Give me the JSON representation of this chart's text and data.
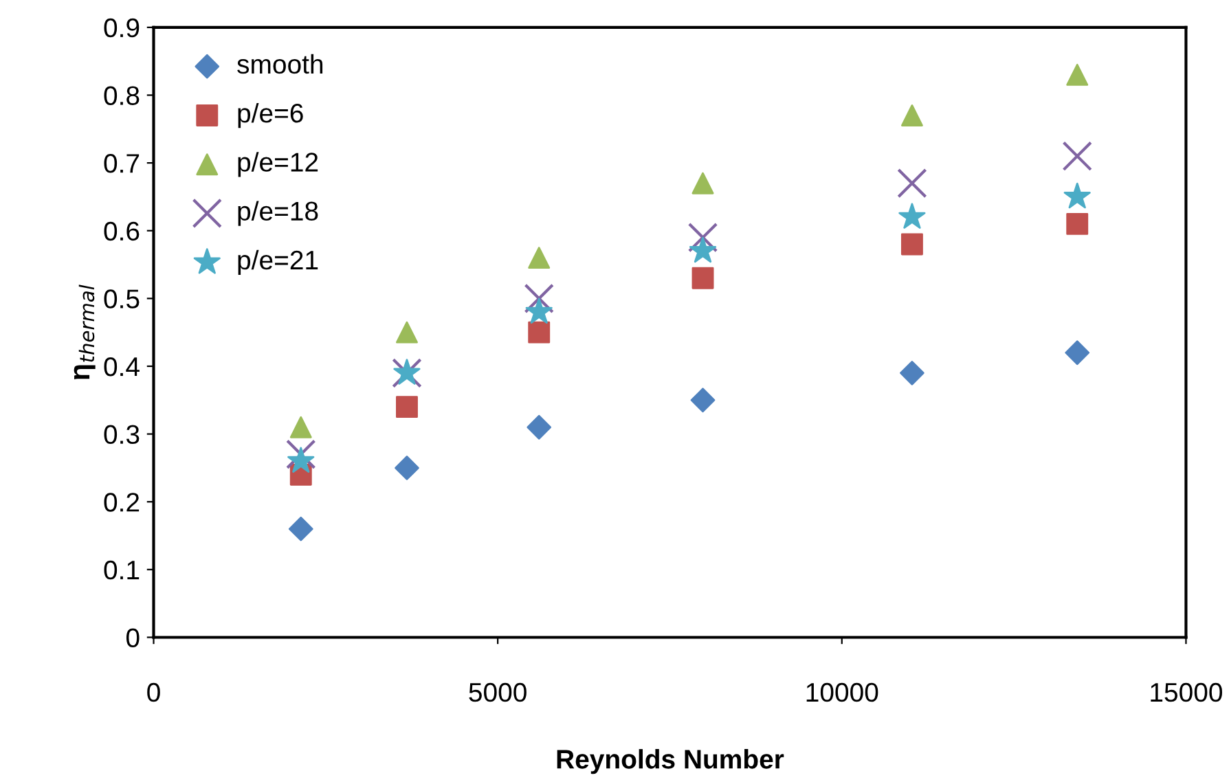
{
  "chart_data": {
    "type": "scatter",
    "xlabel": "Reynolds Number",
    "ylabel": "η$_{thermal}$",
    "x": [
      2140,
      3680,
      5600,
      7980,
      11020,
      13420
    ],
    "series": [
      {
        "name": "smooth",
        "color": "#4f81bd",
        "marker": "diamond",
        "values": [
          0.16,
          0.25,
          0.31,
          0.35,
          0.39,
          0.42
        ]
      },
      {
        "name": "p/e=6",
        "color": "#c0504d",
        "marker": "square",
        "values": [
          0.24,
          0.34,
          0.45,
          0.53,
          0.58,
          0.61
        ]
      },
      {
        "name": "p/e=12",
        "color": "#9bbb59",
        "marker": "triangle",
        "values": [
          0.31,
          0.45,
          0.56,
          0.67,
          0.77,
          0.83
        ]
      },
      {
        "name": "p/e=18",
        "color": "#8064a2",
        "marker": "cross",
        "values": [
          0.27,
          0.39,
          0.5,
          0.59,
          0.67,
          0.71
        ]
      },
      {
        "name": "p/e=21",
        "color": "#4bacc6",
        "marker": "star",
        "values": [
          0.26,
          0.39,
          0.48,
          0.57,
          0.62,
          0.65
        ]
      }
    ],
    "xlim": [
      0,
      15000
    ],
    "xticks": [
      0,
      5000,
      10000,
      15000
    ],
    "ylim": [
      0,
      0.9
    ],
    "yticks": [
      0,
      0.1,
      0.2,
      0.3,
      0.4,
      0.5,
      0.6,
      0.7,
      0.8,
      0.9
    ],
    "grid": false,
    "legend": "top left"
  }
}
